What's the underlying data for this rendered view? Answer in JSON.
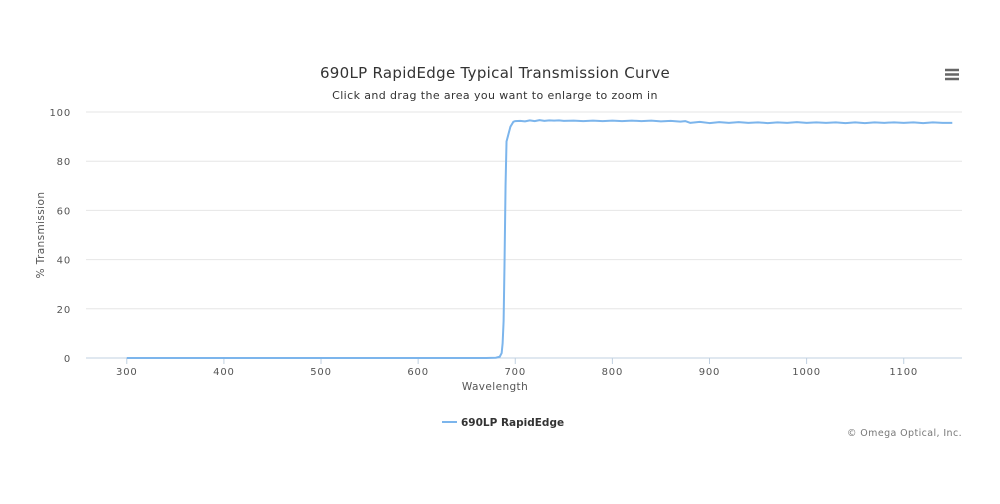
{
  "chart_data": {
    "type": "line",
    "title": "690LP RapidEdge Typical Transmission Curve",
    "subtitle": "Click and drag the area you want to enlarge to zoom in",
    "xlabel": "Wavelength",
    "ylabel": "% Transmission",
    "xlim": [
      258,
      1160
    ],
    "ylim": [
      0,
      100
    ],
    "x_ticks": [
      300,
      400,
      500,
      600,
      700,
      800,
      900,
      1000,
      1100
    ],
    "y_ticks": [
      0,
      20,
      40,
      60,
      80,
      100
    ],
    "grid": true,
    "legend_position": "bottom-center",
    "series": [
      {
        "name": "690LP RapidEdge",
        "color": "#7cb5ec",
        "points": [
          [
            300,
            0
          ],
          [
            400,
            0
          ],
          [
            500,
            0
          ],
          [
            600,
            0
          ],
          [
            670,
            0
          ],
          [
            680,
            0.1
          ],
          [
            684,
            0.5
          ],
          [
            686,
            2
          ],
          [
            687,
            6
          ],
          [
            688,
            15
          ],
          [
            689,
            40
          ],
          [
            690,
            70
          ],
          [
            691,
            88
          ],
          [
            693,
            91
          ],
          [
            695,
            94
          ],
          [
            698,
            96
          ],
          [
            700,
            96.3
          ],
          [
            705,
            96.4
          ],
          [
            710,
            96.2
          ],
          [
            715,
            96.6
          ],
          [
            720,
            96.3
          ],
          [
            725,
            96.7
          ],
          [
            730,
            96.4
          ],
          [
            735,
            96.6
          ],
          [
            740,
            96.5
          ],
          [
            745,
            96.6
          ],
          [
            750,
            96.4
          ],
          [
            760,
            96.5
          ],
          [
            770,
            96.3
          ],
          [
            780,
            96.5
          ],
          [
            790,
            96.3
          ],
          [
            800,
            96.5
          ],
          [
            810,
            96.3
          ],
          [
            820,
            96.5
          ],
          [
            830,
            96.3
          ],
          [
            840,
            96.5
          ],
          [
            850,
            96.2
          ],
          [
            860,
            96.4
          ],
          [
            870,
            96.1
          ],
          [
            875,
            96.3
          ],
          [
            880,
            95.6
          ],
          [
            890,
            96.0
          ],
          [
            900,
            95.5
          ],
          [
            910,
            95.9
          ],
          [
            920,
            95.6
          ],
          [
            930,
            95.9
          ],
          [
            940,
            95.6
          ],
          [
            950,
            95.8
          ],
          [
            960,
            95.5
          ],
          [
            970,
            95.8
          ],
          [
            980,
            95.6
          ],
          [
            990,
            95.9
          ],
          [
            1000,
            95.6
          ],
          [
            1010,
            95.8
          ],
          [
            1020,
            95.6
          ],
          [
            1030,
            95.8
          ],
          [
            1040,
            95.5
          ],
          [
            1050,
            95.8
          ],
          [
            1060,
            95.5
          ],
          [
            1070,
            95.8
          ],
          [
            1080,
            95.6
          ],
          [
            1090,
            95.8
          ],
          [
            1100,
            95.6
          ],
          [
            1110,
            95.8
          ],
          [
            1120,
            95.5
          ],
          [
            1130,
            95.8
          ],
          [
            1140,
            95.6
          ],
          [
            1150,
            95.6
          ]
        ]
      }
    ]
  },
  "credits": "© Omega Optical, Inc.",
  "menu_icon": "hamburger-menu-icon"
}
